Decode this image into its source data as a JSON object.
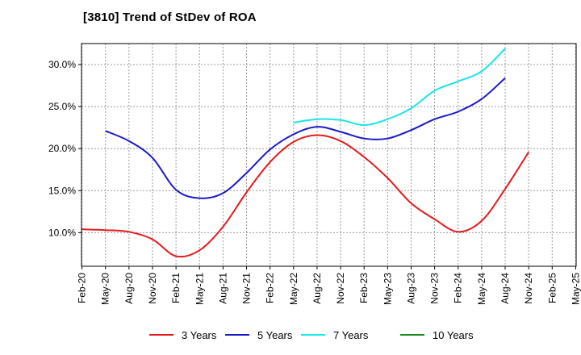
{
  "chart_data": {
    "type": "line",
    "title": "[3810]  Trend of StDev of ROA",
    "xlabel": "",
    "ylabel": "",
    "ylim": [
      6.0,
      32.5
    ],
    "y_ticks": [
      10,
      15,
      20,
      25,
      30
    ],
    "y_tick_labels": [
      "10.0%",
      "15.0%",
      "20.0%",
      "25.0%",
      "30.0%"
    ],
    "x_tick_labels": [
      "Feb-20",
      "May-20",
      "Aug-20",
      "Nov-20",
      "Feb-21",
      "May-21",
      "Aug-21",
      "Nov-21",
      "Feb-22",
      "May-22",
      "Aug-22",
      "Nov-22",
      "Feb-23",
      "May-23",
      "Aug-23",
      "Nov-23",
      "Feb-24",
      "May-24",
      "Aug-24",
      "Nov-24",
      "Feb-25",
      "May-25"
    ],
    "grid": true,
    "legend_position": "bottom",
    "series": [
      {
        "name": "3 Years",
        "color": "#e31a1c",
        "values": [
          10.4,
          10.3,
          10.1,
          9.2,
          7.2,
          7.9,
          10.7,
          14.8,
          18.4,
          20.8,
          21.6,
          20.9,
          19.0,
          16.5,
          13.5,
          11.6,
          10.1,
          11.4,
          15.2,
          19.6
        ],
        "x_start_index": 0
      },
      {
        "name": "5 Years",
        "color": "#1919c8",
        "values": [
          22.1,
          20.9,
          18.9,
          15.1,
          14.1,
          14.7,
          17.1,
          19.9,
          21.7,
          22.6,
          22.0,
          21.2,
          21.2,
          22.2,
          23.5,
          24.4,
          25.9,
          28.4
        ],
        "x_start_index": 1
      },
      {
        "name": "7 Years",
        "color": "#19e6e6",
        "values": [
          23.1,
          23.5,
          23.4,
          22.8,
          23.5,
          24.8,
          26.9,
          28.0,
          29.2,
          31.9
        ],
        "x_start_index": 9
      },
      {
        "name": "10 Years",
        "color": "#1a8a1a",
        "values": [],
        "x_start_index": 0
      }
    ]
  }
}
